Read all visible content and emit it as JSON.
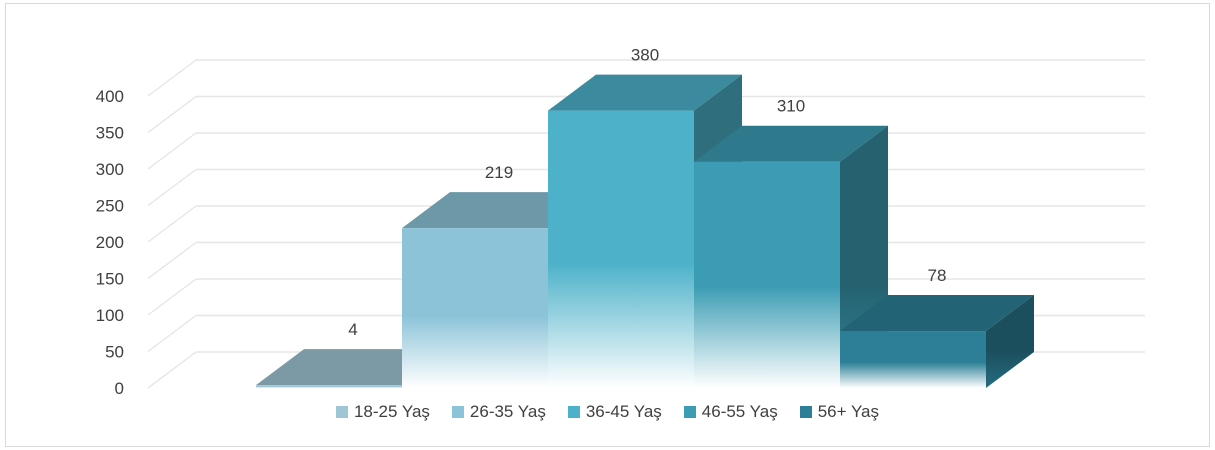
{
  "chart_data": {
    "type": "bar",
    "subtype": "3d-column",
    "categories": [
      "18-25 Yaş",
      "26-35 Yaş",
      "36-45 Yaş",
      "46-55 Yaş",
      "56+ Yaş"
    ],
    "values": [
      4,
      219,
      380,
      310,
      78
    ],
    "title": "",
    "xlabel": "",
    "ylabel": "",
    "ylim": [
      0,
      400
    ],
    "yticks": [
      0,
      50,
      100,
      150,
      200,
      250,
      300,
      350,
      400
    ],
    "grid": true,
    "legend": "bottom",
    "colors": [
      "#9fc6d4",
      "#8cc3d8",
      "#4cb1c9",
      "#3b9cb3",
      "#2c7f96"
    ]
  }
}
